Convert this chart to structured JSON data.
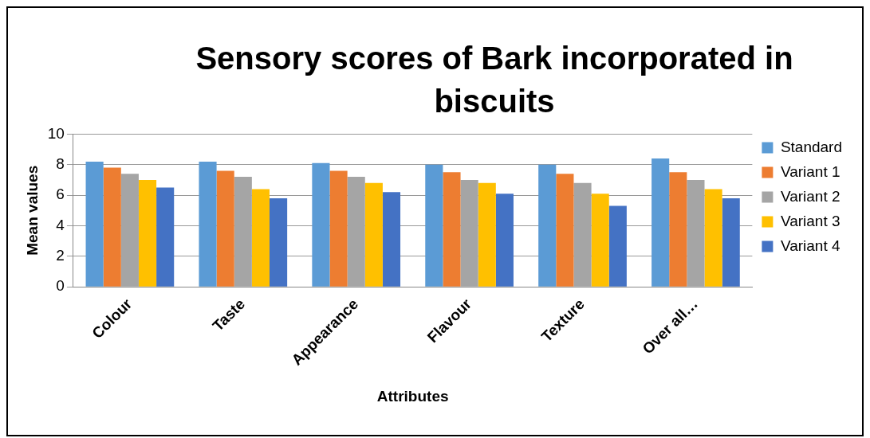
{
  "chart_data": {
    "type": "bar",
    "title": "Sensory scores of Bark incorporated in biscuits",
    "xlabel": "Attributes",
    "ylabel": "Mean values",
    "categories": [
      "Colour",
      "Taste",
      "Appearance",
      "Flavour",
      "Texture",
      "Over all…"
    ],
    "series": [
      {
        "name": "Standard",
        "color": "#5b9bd5",
        "values": [
          8.2,
          8.2,
          8.1,
          8.0,
          8.0,
          8.4
        ]
      },
      {
        "name": "Variant 1",
        "color": "#ed7d31",
        "values": [
          7.8,
          7.6,
          7.6,
          7.5,
          7.4,
          7.5
        ]
      },
      {
        "name": "Variant 2",
        "color": "#a5a5a5",
        "values": [
          7.4,
          7.2,
          7.2,
          7.0,
          6.8,
          7.0
        ]
      },
      {
        "name": "Variant 3",
        "color": "#ffc000",
        "values": [
          7.0,
          6.4,
          6.8,
          6.8,
          6.1,
          6.4
        ]
      },
      {
        "name": "Variant 4",
        "color": "#4472c4",
        "values": [
          6.5,
          5.8,
          6.2,
          6.1,
          5.3,
          5.8
        ]
      }
    ],
    "ylim": [
      0,
      10
    ],
    "yticks": [
      0,
      2,
      4,
      6,
      8,
      10
    ],
    "grid": "y",
    "legend": "right"
  }
}
